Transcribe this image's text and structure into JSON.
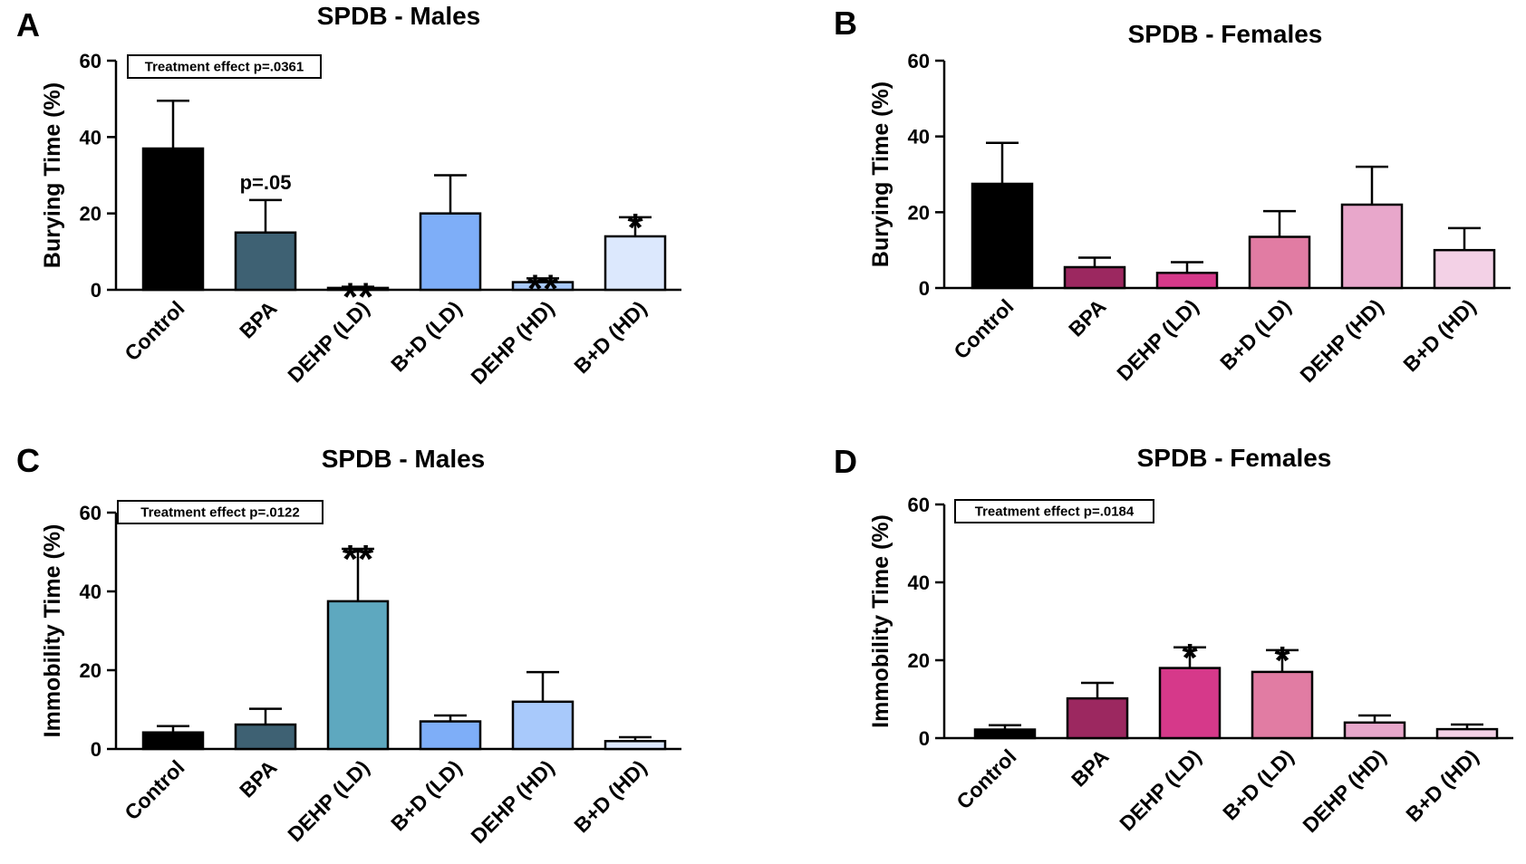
{
  "chart_data": [
    {
      "panel": "A",
      "type": "bar",
      "title": "SPDB - Males",
      "xlabel": "",
      "ylabel": "Burying Time (%)",
      "ylim": [
        0,
        60
      ],
      "yticks": [
        0,
        20,
        40,
        60
      ],
      "categories": [
        "Control",
        "BPA",
        "DEHP (LD)",
        "B+D (LD)",
        "DEHP (HD)",
        "B+D (HD)"
      ],
      "values": [
        37,
        15,
        0.5,
        20,
        2,
        14
      ],
      "errors": [
        12.5,
        8.5,
        0.3,
        10,
        1,
        5
      ],
      "colors": [
        "#000000",
        "#3e6173",
        "#ffffff",
        "#7eaef8",
        "#a8c9fb",
        "#dce8fd"
      ],
      "annotations": [
        "",
        "p=.05",
        "**",
        "",
        "**",
        "*"
      ],
      "stats_box": "Treatment effect p=.0361"
    },
    {
      "panel": "B",
      "type": "bar",
      "title": "SPDB - Females",
      "xlabel": "",
      "ylabel": "Burying Time (%)",
      "ylim": [
        0,
        60
      ],
      "yticks": [
        0,
        20,
        40,
        60
      ],
      "categories": [
        "Control",
        "BPA",
        "DEHP (LD)",
        "B+D (LD)",
        "DEHP (HD)",
        "B+D (HD)"
      ],
      "values": [
        27.5,
        5.5,
        4,
        13.5,
        22,
        10
      ],
      "errors": [
        10.8,
        2.5,
        2.8,
        6.8,
        10,
        5.8
      ],
      "colors": [
        "#000000",
        "#9c2860",
        "#d6398a",
        "#e17ca3",
        "#e8a7cb",
        "#f3d1e6"
      ],
      "annotations": [
        "",
        "",
        "",
        "",
        "",
        ""
      ],
      "stats_box": ""
    },
    {
      "panel": "C",
      "type": "bar",
      "title": "SPDB - Males",
      "xlabel": "",
      "ylabel": "Immobility Time (%)",
      "ylim": [
        0,
        60
      ],
      "yticks": [
        0,
        20,
        40,
        60
      ],
      "categories": [
        "Control",
        "BPA",
        "DEHP (LD)",
        "B+D (LD)",
        "DEHP (HD)",
        "B+D (HD)"
      ],
      "values": [
        4.2,
        6.2,
        37.5,
        7,
        12,
        2
      ],
      "errors": [
        1.6,
        4,
        13.3,
        1.5,
        7.5,
        1
      ],
      "colors": [
        "#000000",
        "#3e6173",
        "#5ea8bf",
        "#7eaef8",
        "#a8c9fb",
        "#dce8fd"
      ],
      "annotations": [
        "",
        "",
        "**",
        "",
        "",
        ""
      ],
      "stats_box": "Treatment effect p=.0122"
    },
    {
      "panel": "D",
      "type": "bar",
      "title": "SPDB - Females",
      "xlabel": "",
      "ylabel": "Immobility Time (%)",
      "ylim": [
        0,
        60
      ],
      "yticks": [
        0,
        20,
        40,
        60
      ],
      "categories": [
        "Control",
        "BPA",
        "DEHP (LD)",
        "B+D (LD)",
        "DEHP (HD)",
        "B+D (HD)"
      ],
      "values": [
        2.2,
        10.2,
        18,
        17,
        4,
        2.3
      ],
      "errors": [
        1.1,
        4,
        5.3,
        5.6,
        1.8,
        1.2
      ],
      "colors": [
        "#000000",
        "#9c2860",
        "#d6398a",
        "#e17ca3",
        "#e8a7cb",
        "#f3d1e6"
      ],
      "annotations": [
        "",
        "",
        "*",
        "*",
        "",
        ""
      ],
      "stats_box": "Treatment effect p=.0184"
    }
  ]
}
